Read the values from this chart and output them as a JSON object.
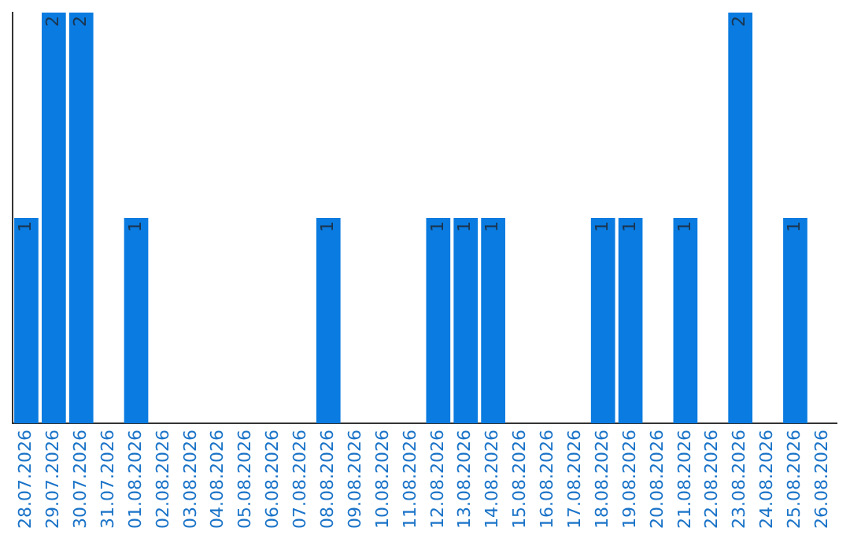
{
  "chart_data": {
    "type": "bar",
    "categories": [
      "28.07.2026",
      "29.07.2026",
      "30.07.2026",
      "31.07.2026",
      "01.08.2026",
      "02.08.2026",
      "03.08.2026",
      "04.08.2026",
      "05.08.2026",
      "06.08.2026",
      "07.08.2026",
      "08.08.2026",
      "09.08.2026",
      "10.08.2026",
      "11.08.2026",
      "12.08.2026",
      "13.08.2026",
      "14.08.2026",
      "15.08.2026",
      "16.08.2026",
      "17.08.2026",
      "18.08.2026",
      "19.08.2026",
      "20.08.2026",
      "21.08.2026",
      "22.08.2026",
      "23.08.2026",
      "24.08.2026",
      "25.08.2026",
      "26.08.2026"
    ],
    "values": [
      1,
      2,
      2,
      0,
      1,
      0,
      0,
      0,
      0,
      0,
      0,
      1,
      0,
      0,
      0,
      1,
      1,
      1,
      0,
      0,
      0,
      1,
      1,
      0,
      1,
      0,
      2,
      0,
      1,
      0
    ],
    "value_labels": [
      "1",
      "2",
      "2",
      null,
      "1",
      null,
      null,
      null,
      null,
      null,
      null,
      "1",
      null,
      null,
      null,
      "1",
      "1",
      "1",
      null,
      null,
      null,
      "1",
      "1",
      null,
      "1",
      null,
      "2",
      null,
      "1",
      null
    ],
    "color": "#0a7be0",
    "ylim": [
      0,
      2
    ],
    "tick_labels": "x",
    "grid": false,
    "legend": false
  }
}
